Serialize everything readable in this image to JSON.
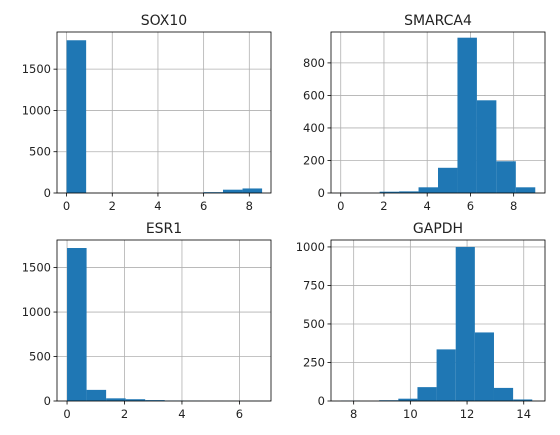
{
  "colors": {
    "bar": "#1f77b4",
    "grid": "#b0b0b0",
    "axis": "#000000",
    "text": "#222222"
  },
  "chart_data": [
    {
      "type": "bar",
      "title": "SOX10",
      "xlim": [
        -0.42,
        8.95
      ],
      "ylim": [
        0,
        1950
      ],
      "xticks": [
        0,
        2,
        4,
        6,
        8
      ],
      "xtick_labels": [
        "0",
        "2",
        "4",
        "6",
        "8"
      ],
      "yticks": [
        0,
        500,
        1000,
        1500
      ],
      "ytick_labels": [
        "0",
        "500",
        "1000",
        "1500"
      ],
      "bin_edges": [
        0,
        0.856,
        1.712,
        2.568,
        3.424,
        4.28,
        5.136,
        5.992,
        6.848,
        7.704,
        8.56
      ],
      "counts": [
        1850,
        0,
        0,
        0,
        0,
        0,
        0,
        10,
        40,
        55
      ],
      "grid": true
    },
    {
      "type": "bar",
      "title": "SMARCA4",
      "xlim": [
        -0.45,
        9.45
      ],
      "ylim": [
        0,
        990
      ],
      "xticks": [
        0,
        2,
        4,
        6,
        8
      ],
      "xtick_labels": [
        "0",
        "2",
        "4",
        "6",
        "8"
      ],
      "yticks": [
        0,
        200,
        400,
        600,
        800
      ],
      "ytick_labels": [
        "0",
        "200",
        "400",
        "600",
        "800"
      ],
      "bin_edges": [
        0,
        0.9,
        1.8,
        2.7,
        3.6,
        4.5,
        5.4,
        6.3,
        7.2,
        8.1,
        9.0
      ],
      "counts": [
        1,
        1,
        8,
        10,
        35,
        155,
        955,
        570,
        195,
        35
      ],
      "grid": true
    },
    {
      "type": "bar",
      "title": "ESR1",
      "xlim": [
        -0.35,
        7.1
      ],
      "ylim": [
        0,
        1810
      ],
      "xticks": [
        0,
        2,
        4,
        6
      ],
      "xtick_labels": [
        "0",
        "2",
        "4",
        "6"
      ],
      "yticks": [
        0,
        500,
        1000,
        1500
      ],
      "ytick_labels": [
        "0",
        "500",
        "1000",
        "1500"
      ],
      "bin_edges": [
        0,
        0.68,
        1.36,
        2.04,
        2.72,
        3.4,
        4.08,
        4.76,
        5.44,
        6.12,
        6.8
      ],
      "counts": [
        1720,
        125,
        30,
        20,
        10,
        5,
        3,
        2,
        1,
        1
      ],
      "grid": true
    },
    {
      "type": "bar",
      "title": "GAPDH",
      "xlim": [
        7.2,
        14.75
      ],
      "ylim": [
        0,
        1045
      ],
      "xticks": [
        8,
        10,
        12,
        14
      ],
      "xtick_labels": [
        "8",
        "10",
        "12",
        "14"
      ],
      "yticks": [
        0,
        250,
        500,
        750,
        1000
      ],
      "ytick_labels": [
        "0",
        "250",
        "500",
        "750",
        "1000"
      ],
      "bin_edges": [
        7.55,
        8.225,
        8.9,
        9.575,
        10.25,
        10.925,
        11.6,
        12.275,
        12.95,
        13.625,
        14.3
      ],
      "counts": [
        2,
        0,
        5,
        15,
        90,
        335,
        1000,
        445,
        85,
        10
      ],
      "grid": true
    }
  ]
}
